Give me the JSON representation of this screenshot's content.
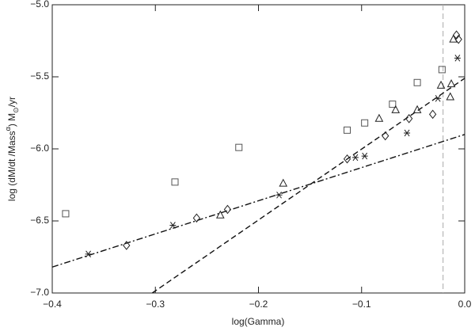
{
  "chart_data": {
    "type": "scatter",
    "xlabel": "log(Gamma)",
    "ylabel_parts": [
      "log (dM/dt /Mass",
      "α",
      ") M",
      "⊙",
      "/yr"
    ],
    "xlim": [
      -0.4,
      0.0
    ],
    "ylim": [
      -7.0,
      -5.0
    ],
    "xticks": [
      {
        "value": -0.4,
        "label": "−0.4"
      },
      {
        "value": -0.3,
        "label": "−0.3"
      },
      {
        "value": -0.2,
        "label": "−0.2"
      },
      {
        "value": -0.1,
        "label": "−0.1"
      },
      {
        "value": 0.0,
        "label": "0.0"
      }
    ],
    "yticks": [
      {
        "value": -7.0,
        "label": "−7.0"
      },
      {
        "value": -6.5,
        "label": "−6.5"
      },
      {
        "value": -6.0,
        "label": "−6.0"
      },
      {
        "value": -5.5,
        "label": "−5.5"
      },
      {
        "value": -5.0,
        "label": "−5.0"
      }
    ],
    "series": [
      {
        "marker": "square",
        "color": "#555555",
        "x": [
          -0.387,
          -0.281,
          -0.219,
          -0.114,
          -0.097,
          -0.07,
          -0.046,
          -0.022
        ],
        "values": [
          -6.45,
          -6.23,
          -5.99,
          -5.87,
          -5.82,
          -5.69,
          -5.54,
          -5.45
        ]
      },
      {
        "marker": "diamond",
        "color": "#222222",
        "x": [
          -0.328,
          -0.26,
          -0.23,
          -0.114,
          -0.077,
          -0.054,
          -0.031,
          -0.008,
          -0.006
        ],
        "values": [
          -6.67,
          -6.48,
          -6.42,
          -6.07,
          -5.91,
          -5.79,
          -5.76,
          -5.21,
          -5.24
        ]
      },
      {
        "marker": "asterisk",
        "color": "#222222",
        "x": [
          -0.365,
          -0.283,
          -0.18,
          -0.106,
          -0.097,
          -0.056,
          -0.026,
          -0.007
        ],
        "values": [
          -6.73,
          -6.53,
          -6.32,
          -6.06,
          -6.05,
          -5.89,
          -5.65,
          -5.37
        ]
      },
      {
        "marker": "triangle",
        "color": "#222222",
        "x": [
          -0.237,
          -0.176,
          -0.083,
          -0.067,
          -0.046,
          -0.023,
          -0.013,
          -0.014,
          -0.011
        ],
        "values": [
          -6.46,
          -6.24,
          -5.79,
          -5.73,
          -5.73,
          -5.56,
          -5.55,
          -5.64,
          -5.24
        ]
      }
    ],
    "lines": [
      {
        "style": "dashdot",
        "color": "#111111",
        "x": [
          -0.4,
          0.0
        ],
        "values": [
          -6.82,
          -5.9
        ]
      },
      {
        "style": "dashed",
        "color": "#111111",
        "x": [
          -0.303,
          0.0
        ],
        "values": [
          -7.0,
          -5.51
        ]
      }
    ],
    "vlines": [
      {
        "x": -0.021,
        "color": "#aaaaaa",
        "style": "dashed"
      }
    ]
  }
}
